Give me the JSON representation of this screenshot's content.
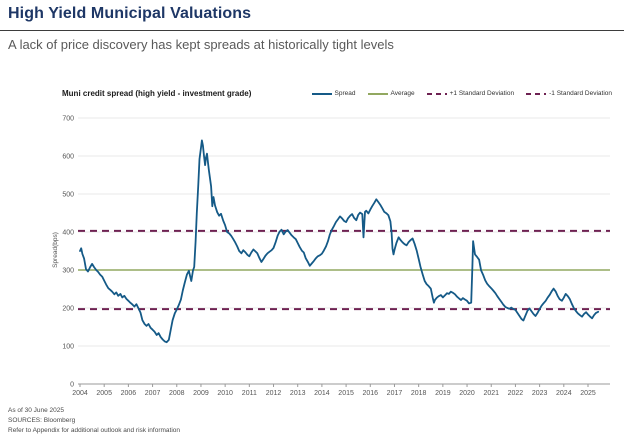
{
  "header": {
    "title": "High Yield Municipal Valuations",
    "subtitle": "A lack of price discovery has kept spreads at historically tight levels"
  },
  "chart": {
    "title": "Muni credit spread (high yield - investment grade)",
    "y_axis_label": "Spread(bps)",
    "legend": [
      {
        "label": "Spread",
        "color": "#155a87",
        "dash": false
      },
      {
        "label": "Average",
        "color": "#92a860",
        "dash": false
      },
      {
        "label": "+1 Standard Deviation",
        "color": "#6e2152",
        "dash": true
      },
      {
        "label": "-1 Standard Deviation",
        "color": "#6e2152",
        "dash": true
      }
    ]
  },
  "chart_data": {
    "type": "line",
    "title": "Muni credit spread (high yield - investment grade)",
    "xlabel": "",
    "ylabel": "Spread(bps)",
    "ylim": [
      0,
      700
    ],
    "y_ticks": [
      0,
      100,
      200,
      300,
      400,
      500,
      600,
      700
    ],
    "x_ticks": [
      2004,
      2005,
      2006,
      2007,
      2008,
      2009,
      2010,
      2011,
      2012,
      2013,
      2014,
      2015,
      2016,
      2017,
      2018,
      2019,
      2020,
      2021,
      2022,
      2023,
      2024,
      2025
    ],
    "grid": true,
    "legend_position": "top-right",
    "reference_lines": [
      {
        "name": "Average",
        "value": 300,
        "color": "#92a860",
        "dash": false
      },
      {
        "name": "+1 Standard Deviation",
        "value": 403,
        "color": "#6e2152",
        "dash": true
      },
      {
        "name": "-1 Standard Deviation",
        "value": 197,
        "color": "#6e2152",
        "dash": true
      }
    ],
    "series": [
      {
        "name": "Spread",
        "color": "#155a87",
        "points": [
          [
            2004.0,
            350
          ],
          [
            2004.05,
            357
          ],
          [
            2004.1,
            342
          ],
          [
            2004.17,
            330
          ],
          [
            2004.25,
            302
          ],
          [
            2004.33,
            296
          ],
          [
            2004.42,
            308
          ],
          [
            2004.5,
            316
          ],
          [
            2004.58,
            308
          ],
          [
            2004.67,
            300
          ],
          [
            2004.75,
            295
          ],
          [
            2004.83,
            288
          ],
          [
            2004.92,
            282
          ],
          [
            2005.0,
            272
          ],
          [
            2005.08,
            262
          ],
          [
            2005.17,
            252
          ],
          [
            2005.25,
            248
          ],
          [
            2005.33,
            243
          ],
          [
            2005.42,
            236
          ],
          [
            2005.5,
            241
          ],
          [
            2005.58,
            232
          ],
          [
            2005.67,
            237
          ],
          [
            2005.75,
            228
          ],
          [
            2005.83,
            232
          ],
          [
            2005.92,
            224
          ],
          [
            2006.0,
            219
          ],
          [
            2006.08,
            214
          ],
          [
            2006.17,
            209
          ],
          [
            2006.25,
            204
          ],
          [
            2006.33,
            210
          ],
          [
            2006.42,
            199
          ],
          [
            2006.5,
            188
          ],
          [
            2006.58,
            168
          ],
          [
            2006.67,
            158
          ],
          [
            2006.75,
            153
          ],
          [
            2006.83,
            158
          ],
          [
            2006.92,
            148
          ],
          [
            2007.0,
            143
          ],
          [
            2007.08,
            138
          ],
          [
            2007.17,
            129
          ],
          [
            2007.25,
            134
          ],
          [
            2007.33,
            124
          ],
          [
            2007.42,
            117
          ],
          [
            2007.5,
            112
          ],
          [
            2007.58,
            110
          ],
          [
            2007.67,
            116
          ],
          [
            2007.75,
            142
          ],
          [
            2007.83,
            168
          ],
          [
            2007.92,
            186
          ],
          [
            2008.0,
            196
          ],
          [
            2008.08,
            207
          ],
          [
            2008.17,
            222
          ],
          [
            2008.25,
            246
          ],
          [
            2008.33,
            266
          ],
          [
            2008.42,
            288
          ],
          [
            2008.5,
            298
          ],
          [
            2008.55,
            284
          ],
          [
            2008.6,
            271
          ],
          [
            2008.67,
            299
          ],
          [
            2008.72,
            308
          ],
          [
            2008.78,
            375
          ],
          [
            2008.83,
            450
          ],
          [
            2008.89,
            525
          ],
          [
            2008.94,
            592
          ],
          [
            2009.0,
            622
          ],
          [
            2009.04,
            641
          ],
          [
            2009.08,
            628
          ],
          [
            2009.13,
            598
          ],
          [
            2009.17,
            576
          ],
          [
            2009.21,
            596
          ],
          [
            2009.25,
            606
          ],
          [
            2009.29,
            582
          ],
          [
            2009.33,
            562
          ],
          [
            2009.42,
            520
          ],
          [
            2009.47,
            468
          ],
          [
            2009.52,
            492
          ],
          [
            2009.58,
            470
          ],
          [
            2009.67,
            452
          ],
          [
            2009.75,
            443
          ],
          [
            2009.83,
            448
          ],
          [
            2009.92,
            430
          ],
          [
            2010.0,
            418
          ],
          [
            2010.08,
            400
          ],
          [
            2010.17,
            396
          ],
          [
            2010.25,
            390
          ],
          [
            2010.33,
            382
          ],
          [
            2010.42,
            372
          ],
          [
            2010.5,
            362
          ],
          [
            2010.58,
            350
          ],
          [
            2010.67,
            344
          ],
          [
            2010.75,
            352
          ],
          [
            2010.83,
            347
          ],
          [
            2010.92,
            340
          ],
          [
            2011.0,
            336
          ],
          [
            2011.08,
            346
          ],
          [
            2011.17,
            354
          ],
          [
            2011.25,
            349
          ],
          [
            2011.33,
            344
          ],
          [
            2011.42,
            331
          ],
          [
            2011.5,
            321
          ],
          [
            2011.58,
            329
          ],
          [
            2011.67,
            338
          ],
          [
            2011.75,
            344
          ],
          [
            2011.83,
            348
          ],
          [
            2011.92,
            352
          ],
          [
            2012.0,
            358
          ],
          [
            2012.08,
            372
          ],
          [
            2012.17,
            390
          ],
          [
            2012.25,
            401
          ],
          [
            2012.33,
            406
          ],
          [
            2012.42,
            394
          ],
          [
            2012.5,
            401
          ],
          [
            2012.58,
            405
          ],
          [
            2012.67,
            398
          ],
          [
            2012.75,
            391
          ],
          [
            2012.83,
            386
          ],
          [
            2012.92,
            381
          ],
          [
            2013.0,
            371
          ],
          [
            2013.08,
            361
          ],
          [
            2013.17,
            351
          ],
          [
            2013.25,
            346
          ],
          [
            2013.33,
            331
          ],
          [
            2013.42,
            321
          ],
          [
            2013.5,
            311
          ],
          [
            2013.58,
            317
          ],
          [
            2013.67,
            324
          ],
          [
            2013.75,
            331
          ],
          [
            2013.83,
            336
          ],
          [
            2013.92,
            339
          ],
          [
            2014.0,
            343
          ],
          [
            2014.08,
            351
          ],
          [
            2014.17,
            362
          ],
          [
            2014.25,
            376
          ],
          [
            2014.33,
            394
          ],
          [
            2014.42,
            407
          ],
          [
            2014.5,
            416
          ],
          [
            2014.58,
            426
          ],
          [
            2014.67,
            434
          ],
          [
            2014.75,
            441
          ],
          [
            2014.83,
            436
          ],
          [
            2014.92,
            429
          ],
          [
            2015.0,
            426
          ],
          [
            2015.08,
            436
          ],
          [
            2015.17,
            443
          ],
          [
            2015.25,
            447
          ],
          [
            2015.33,
            437
          ],
          [
            2015.42,
            431
          ],
          [
            2015.5,
            445
          ],
          [
            2015.58,
            451
          ],
          [
            2015.67,
            447
          ],
          [
            2015.72,
            386
          ],
          [
            2015.78,
            453
          ],
          [
            2015.83,
            456
          ],
          [
            2015.92,
            449
          ],
          [
            2016.0,
            459
          ],
          [
            2016.08,
            468
          ],
          [
            2016.17,
            477
          ],
          [
            2016.25,
            486
          ],
          [
            2016.33,
            479
          ],
          [
            2016.42,
            471
          ],
          [
            2016.5,
            462
          ],
          [
            2016.58,
            453
          ],
          [
            2016.67,
            449
          ],
          [
            2016.75,
            444
          ],
          [
            2016.83,
            428
          ],
          [
            2016.88,
            398
          ],
          [
            2016.92,
            356
          ],
          [
            2016.96,
            341
          ],
          [
            2017.0,
            353
          ],
          [
            2017.08,
            371
          ],
          [
            2017.17,
            386
          ],
          [
            2017.25,
            379
          ],
          [
            2017.33,
            373
          ],
          [
            2017.42,
            368
          ],
          [
            2017.5,
            365
          ],
          [
            2017.58,
            373
          ],
          [
            2017.67,
            379
          ],
          [
            2017.75,
            383
          ],
          [
            2017.83,
            369
          ],
          [
            2017.92,
            351
          ],
          [
            2018.0,
            329
          ],
          [
            2018.08,
            307
          ],
          [
            2018.17,
            287
          ],
          [
            2018.25,
            271
          ],
          [
            2018.33,
            263
          ],
          [
            2018.42,
            257
          ],
          [
            2018.5,
            251
          ],
          [
            2018.58,
            227
          ],
          [
            2018.63,
            214
          ],
          [
            2018.67,
            221
          ],
          [
            2018.75,
            227
          ],
          [
            2018.83,
            231
          ],
          [
            2018.92,
            234
          ],
          [
            2019.0,
            228
          ],
          [
            2019.08,
            233
          ],
          [
            2019.17,
            239
          ],
          [
            2019.25,
            237
          ],
          [
            2019.33,
            243
          ],
          [
            2019.42,
            240
          ],
          [
            2019.5,
            236
          ],
          [
            2019.58,
            230
          ],
          [
            2019.67,
            225
          ],
          [
            2019.75,
            221
          ],
          [
            2019.83,
            226
          ],
          [
            2019.92,
            222
          ],
          [
            2020.0,
            219
          ],
          [
            2020.08,
            212
          ],
          [
            2020.17,
            214
          ],
          [
            2020.22,
            310
          ],
          [
            2020.25,
            376
          ],
          [
            2020.29,
            357
          ],
          [
            2020.33,
            341
          ],
          [
            2020.42,
            334
          ],
          [
            2020.5,
            327
          ],
          [
            2020.58,
            299
          ],
          [
            2020.67,
            286
          ],
          [
            2020.75,
            273
          ],
          [
            2020.83,
            264
          ],
          [
            2020.92,
            257
          ],
          [
            2021.0,
            252
          ],
          [
            2021.08,
            246
          ],
          [
            2021.17,
            239
          ],
          [
            2021.25,
            231
          ],
          [
            2021.33,
            224
          ],
          [
            2021.42,
            216
          ],
          [
            2021.5,
            209
          ],
          [
            2021.58,
            203
          ],
          [
            2021.67,
            200
          ],
          [
            2021.75,
            198
          ],
          [
            2021.83,
            201
          ],
          [
            2021.92,
            197
          ],
          [
            2022.0,
            195
          ],
          [
            2022.08,
            187
          ],
          [
            2022.17,
            179
          ],
          [
            2022.25,
            171
          ],
          [
            2022.33,
            167
          ],
          [
            2022.42,
            181
          ],
          [
            2022.5,
            193
          ],
          [
            2022.58,
            199
          ],
          [
            2022.67,
            191
          ],
          [
            2022.75,
            184
          ],
          [
            2022.83,
            179
          ],
          [
            2022.92,
            188
          ],
          [
            2023.0,
            197
          ],
          [
            2023.08,
            206
          ],
          [
            2023.17,
            213
          ],
          [
            2023.25,
            219
          ],
          [
            2023.33,
            227
          ],
          [
            2023.42,
            235
          ],
          [
            2023.5,
            244
          ],
          [
            2023.58,
            251
          ],
          [
            2023.67,
            243
          ],
          [
            2023.75,
            231
          ],
          [
            2023.83,
            223
          ],
          [
            2023.92,
            219
          ],
          [
            2024.0,
            227
          ],
          [
            2024.08,
            237
          ],
          [
            2024.17,
            231
          ],
          [
            2024.25,
            223
          ],
          [
            2024.33,
            211
          ],
          [
            2024.42,
            199
          ],
          [
            2024.5,
            192
          ],
          [
            2024.58,
            186
          ],
          [
            2024.67,
            181
          ],
          [
            2024.75,
            177
          ],
          [
            2024.83,
            184
          ],
          [
            2024.92,
            189
          ],
          [
            2025.0,
            183
          ],
          [
            2025.08,
            178
          ],
          [
            2025.17,
            173
          ],
          [
            2025.25,
            181
          ],
          [
            2025.33,
            187
          ],
          [
            2025.42,
            190
          ]
        ]
      }
    ]
  },
  "footer": {
    "as_of": "As of 30 June 2025",
    "sources": "SOURCES: Bloomberg",
    "disclaimer": "Refer to Appendix for additional outlook and risk information"
  },
  "colors": {
    "title_navy": "#1e3766",
    "subtitle_gray": "#595959",
    "spread_blue": "#155a87",
    "average_green": "#92a860",
    "std_dev_maroon": "#6e2152",
    "gridline": "#e9e9e9",
    "axis": "#9a9a9a"
  }
}
